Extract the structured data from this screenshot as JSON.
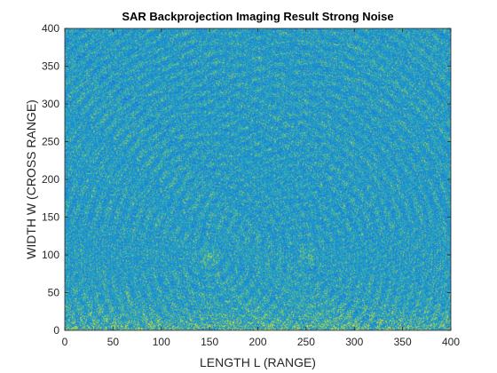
{
  "chart_data": {
    "type": "heatmap",
    "title": "SAR Backprojection Imaging Result Strong Noise",
    "xlabel": "LENGTH L (RANGE)",
    "ylabel": "WIDTH W (CROSS RANGE)",
    "xlim": [
      0,
      400
    ],
    "ylim": [
      0,
      400
    ],
    "xticks": [
      0,
      50,
      100,
      150,
      200,
      250,
      300,
      350,
      400
    ],
    "yticks": [
      0,
      50,
      100,
      150,
      200,
      250,
      300,
      350,
      400
    ],
    "colormap": "parula",
    "colors": {
      "low": "#1f6fe0",
      "mid": "#1ba3c6",
      "high": "#f2e31c"
    },
    "bright_spots": [
      {
        "x": 150,
        "y": 100
      },
      {
        "x": 250,
        "y": 100
      }
    ],
    "grid": false
  }
}
